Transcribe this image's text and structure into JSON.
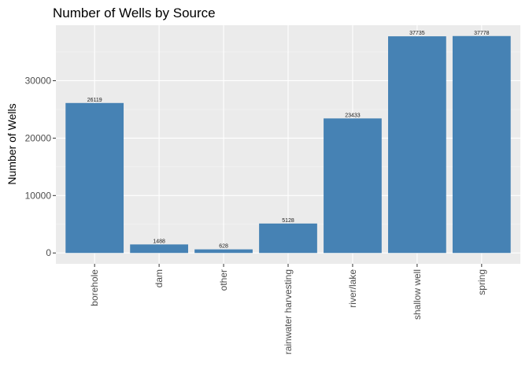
{
  "chart_data": {
    "type": "bar",
    "title": "Number of Wells by Source",
    "xlabel": "",
    "ylabel": "Number of Wells",
    "categories": [
      "borehole",
      "dam",
      "other",
      "rainwater harvesting",
      "river/lake",
      "shallow well",
      "spring"
    ],
    "values": [
      26119,
      1488,
      628,
      5128,
      23433,
      37735,
      37778
    ],
    "data_labels": [
      "26119",
      "1488",
      "628",
      "5128",
      "23433",
      "37735",
      "37778"
    ],
    "y_ticks": [
      0,
      10000,
      20000,
      30000
    ],
    "y_tick_labels": [
      "0",
      "10000",
      "20000",
      "30000"
    ],
    "ylim": [
      -1889,
      39667
    ],
    "grid": true,
    "colors": {
      "bar": "#4682B4",
      "panel": "#EBEBEB",
      "grid_major": "#FFFFFF",
      "grid_minor": "#F5F5F5",
      "tick_text": "#4D4D4D"
    }
  }
}
